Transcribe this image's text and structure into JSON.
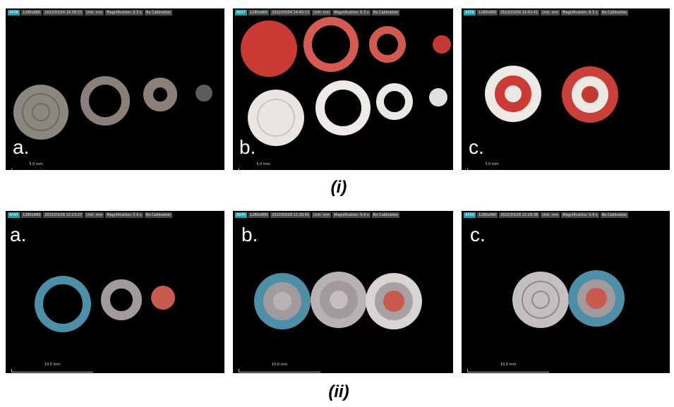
{
  "rows": [
    {
      "caption": "(i)",
      "panels": [
        {
          "id": "A006",
          "resolution": "1280x960",
          "datetime": "2022/03/04 14:38:53",
          "unit": "Unit: mm",
          "magnification": "Magnification: 6.3 x",
          "calibration": "No Calibration",
          "label": "a.",
          "scale": "5.0 mm"
        },
        {
          "id": "A007",
          "resolution": "1280x960",
          "datetime": "2022/03/04 14:40:13",
          "unit": "Unit: mm",
          "magnification": "Magnification: 6.3 x",
          "calibration": "No Calibration",
          "label": "b.",
          "scale": "5.0 mm"
        },
        {
          "id": "A008",
          "resolution": "1280x960",
          "datetime": "2022/03/04 14:41:41",
          "unit": "Unit: mm",
          "magnification": "Magnification: 6.3 x",
          "calibration": "No Calibration",
          "label": "c.",
          "scale": "5.0 mm"
        }
      ]
    },
    {
      "caption": "(ii)",
      "panels": [
        {
          "id": "A045",
          "resolution": "1280x960",
          "datetime": "2022/03/28 12:23:27",
          "unit": "Unit: mm",
          "magnification": "Magnification: 5.4 x",
          "calibration": "No Calibration",
          "label": "a.",
          "scale": "10.0 mm"
        },
        {
          "id": "A046",
          "resolution": "1280x960",
          "datetime": "2022/03/28 12:28:41",
          "unit": "Unit: mm",
          "magnification": "Magnification: 5.4 x",
          "calibration": "No Calibration",
          "label": "b.",
          "scale": "10.0 mm"
        },
        {
          "id": "A050",
          "resolution": "1280x960",
          "datetime": "2022/03/28 12:29:38",
          "unit": "Unit: mm",
          "magnification": "Magnification: 5.4 x",
          "calibration": "No Calibration",
          "label": "c.",
          "scale": "10.0 mm"
        }
      ]
    }
  ],
  "colors": {
    "background": "#000000",
    "grey_ring": "#8d8781",
    "red_ring": "#c9453d",
    "white_ring": "#e9e6e2",
    "blue_ring": "#4d8fa6",
    "mauve_ring": "#a39aa0",
    "caption": "#000000"
  }
}
